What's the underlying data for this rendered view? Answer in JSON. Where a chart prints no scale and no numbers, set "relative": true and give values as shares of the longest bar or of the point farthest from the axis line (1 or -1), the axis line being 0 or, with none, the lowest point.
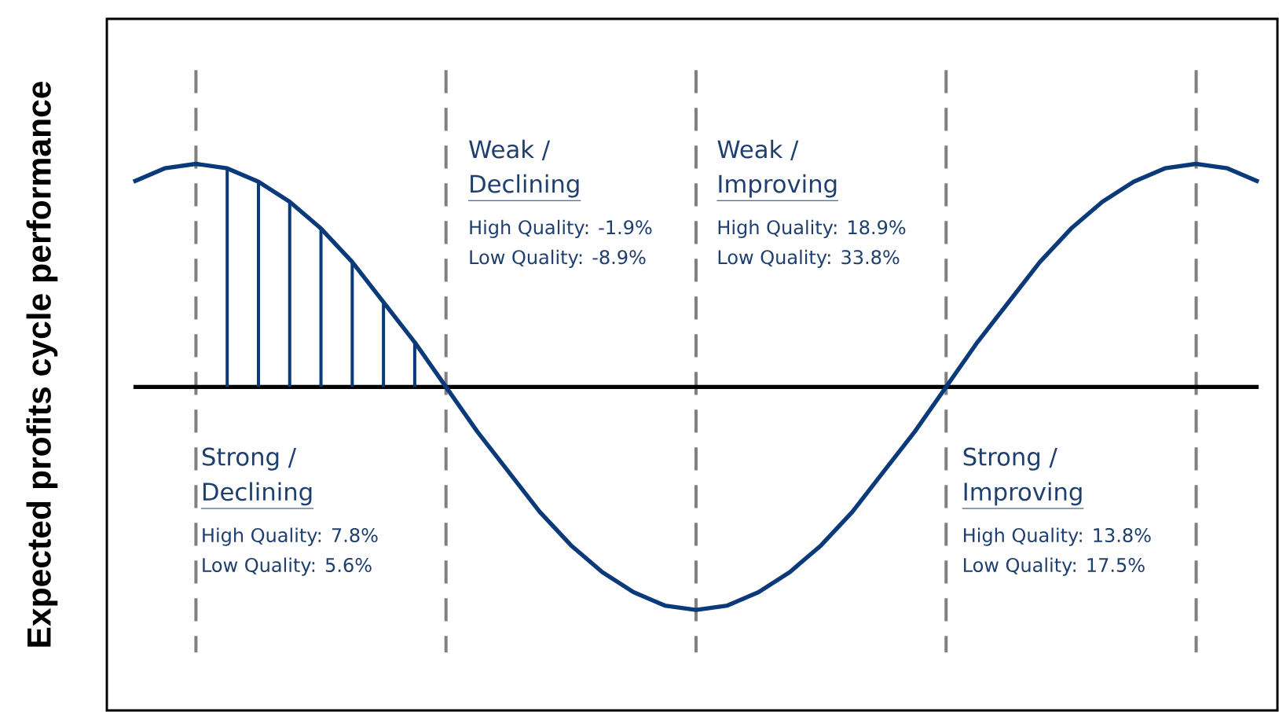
{
  "chart_data": {
    "type": "line",
    "relative": true,
    "grid": "x",
    "ylabel": "Expected profits cycle performance",
    "categories": [
      null,
      null,
      null,
      null,
      null,
      null,
      null,
      null,
      null,
      null,
      null,
      null,
      null,
      null,
      null,
      null,
      null,
      null,
      null,
      null,
      null,
      null,
      null,
      null,
      null,
      null,
      null,
      null,
      null,
      null,
      null,
      null,
      null,
      null,
      null,
      null,
      null
    ],
    "series": [
      {
        "color": "#0b3a7a",
        "values": [
          0.92,
          0.98,
          1,
          0.98,
          0.92,
          0.83,
          0.71,
          0.56,
          0.38,
          0.2,
          0,
          -0.2,
          -0.38,
          -0.56,
          -0.71,
          -0.83,
          -0.92,
          -0.98,
          -1,
          -0.98,
          -0.92,
          -0.83,
          -0.71,
          -0.56,
          -0.38,
          -0.2,
          0,
          0.2,
          0.38,
          0.56,
          0.71,
          0.83,
          0.92,
          0.98,
          1,
          0.98,
          0.92
        ]
      }
    ],
    "annotations": [
      "Weak /",
      "Declining",
      "High Quality: -1.9%",
      "Low Quality:  -8.9%",
      "Weak /",
      "Improving",
      "High Quality: 18.9%",
      "Low Quality:  33.8%",
      "Strong /",
      "Declining",
      "High Quality: 7.8%",
      "Low Quality:  5.6%",
      "Strong /",
      "Improving",
      "High Quality: 13.8%",
      "Low Quality:  17.5%"
    ]
  }
}
